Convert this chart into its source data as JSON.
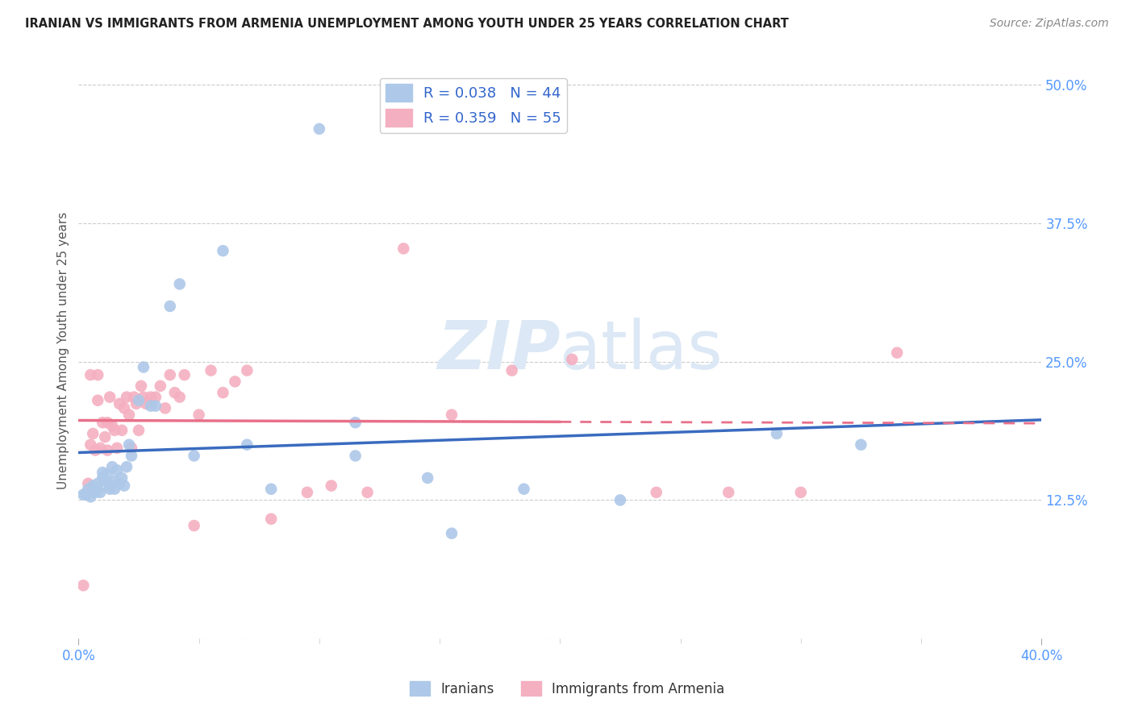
{
  "title": "IRANIAN VS IMMIGRANTS FROM ARMENIA UNEMPLOYMENT AMONG YOUTH UNDER 25 YEARS CORRELATION CHART",
  "source": "Source: ZipAtlas.com",
  "ylabel": "Unemployment Among Youth under 25 years",
  "xlim": [
    0.0,
    0.4
  ],
  "ylim": [
    0.0,
    0.52
  ],
  "ytick_positions": [
    0.0,
    0.125,
    0.25,
    0.375,
    0.5
  ],
  "ytick_labels": [
    "",
    "12.5%",
    "25.0%",
    "37.5%",
    "50.0%"
  ],
  "legend1_label": "R = 0.038   N = 44",
  "legend2_label": "R = 0.359   N = 55",
  "legend1_color": "#adc8e8",
  "legend2_color": "#f4afc0",
  "line1_color": "#3a6bbf",
  "line2_color": "#e8708a",
  "scatter1_color": "#adc8e8",
  "scatter2_color": "#f4afc0",
  "watermark_zip": "ZIP",
  "watermark_atlas": "atlas",
  "watermark_color": "#dce8f5",
  "background_color": "#ffffff",
  "grid_color": "#cccccc",
  "tick_label_color": "#5599ff",
  "title_color": "#222222",
  "source_color": "#888888",
  "iranians_x": [
    0.002,
    0.003,
    0.004,
    0.005,
    0.006,
    0.007,
    0.008,
    0.008,
    0.009,
    0.01,
    0.01,
    0.011,
    0.012,
    0.013,
    0.013,
    0.014,
    0.015,
    0.015,
    0.016,
    0.017,
    0.018,
    0.019,
    0.02,
    0.021,
    0.022,
    0.025,
    0.027,
    0.03,
    0.032,
    0.038,
    0.042,
    0.048,
    0.06,
    0.07,
    0.08,
    0.1,
    0.115,
    0.145,
    0.155,
    0.185,
    0.225,
    0.29,
    0.325,
    0.115
  ],
  "iranians_y": [
    0.13,
    0.13,
    0.135,
    0.128,
    0.138,
    0.132,
    0.14,
    0.135,
    0.132,
    0.145,
    0.15,
    0.142,
    0.148,
    0.138,
    0.135,
    0.155,
    0.142,
    0.135,
    0.152,
    0.14,
    0.145,
    0.138,
    0.155,
    0.175,
    0.165,
    0.215,
    0.245,
    0.21,
    0.21,
    0.3,
    0.32,
    0.165,
    0.35,
    0.175,
    0.135,
    0.46,
    0.165,
    0.145,
    0.095,
    0.135,
    0.125,
    0.185,
    0.175,
    0.195
  ],
  "armenia_x": [
    0.002,
    0.004,
    0.005,
    0.006,
    0.007,
    0.008,
    0.009,
    0.01,
    0.011,
    0.012,
    0.013,
    0.014,
    0.015,
    0.016,
    0.017,
    0.018,
    0.019,
    0.02,
    0.021,
    0.022,
    0.023,
    0.024,
    0.025,
    0.026,
    0.027,
    0.028,
    0.03,
    0.032,
    0.034,
    0.036,
    0.038,
    0.04,
    0.042,
    0.044,
    0.048,
    0.05,
    0.055,
    0.06,
    0.065,
    0.07,
    0.08,
    0.095,
    0.105,
    0.12,
    0.135,
    0.155,
    0.18,
    0.205,
    0.24,
    0.27,
    0.3,
    0.34,
    0.005,
    0.008,
    0.012
  ],
  "armenia_y": [
    0.048,
    0.14,
    0.175,
    0.185,
    0.17,
    0.238,
    0.172,
    0.195,
    0.182,
    0.17,
    0.218,
    0.192,
    0.188,
    0.172,
    0.212,
    0.188,
    0.208,
    0.218,
    0.202,
    0.172,
    0.218,
    0.212,
    0.188,
    0.228,
    0.218,
    0.212,
    0.218,
    0.218,
    0.228,
    0.208,
    0.238,
    0.222,
    0.218,
    0.238,
    0.102,
    0.202,
    0.242,
    0.222,
    0.232,
    0.242,
    0.108,
    0.132,
    0.138,
    0.132,
    0.352,
    0.202,
    0.242,
    0.252,
    0.132,
    0.132,
    0.132,
    0.258,
    0.238,
    0.215,
    0.195
  ]
}
